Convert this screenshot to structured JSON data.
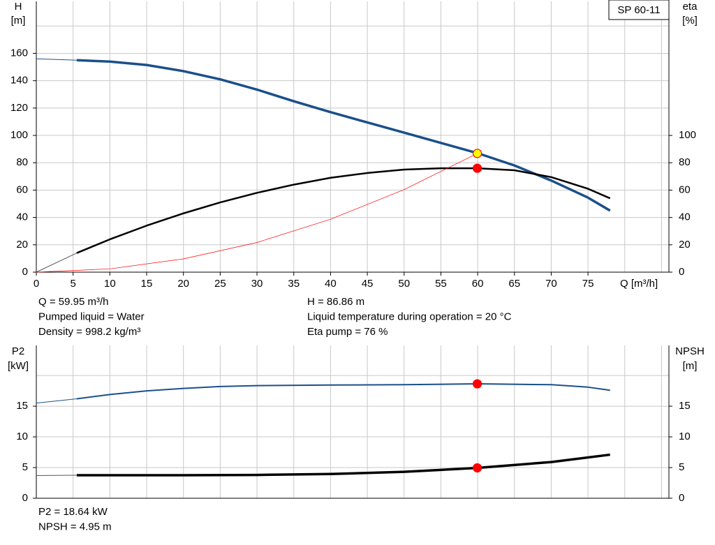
{
  "chart_data": [
    {
      "type": "line",
      "legend_box": "SP 60-11",
      "ylabel": [
        "H",
        "[m]"
      ],
      "y2label": [
        "eta",
        "[%]"
      ],
      "xlabel": "Q [m³/h]",
      "xlim": [
        0,
        86
      ],
      "ylim": [
        0,
        198
      ],
      "y2lim": [
        0,
        198
      ],
      "xticks": [
        0,
        5,
        10,
        15,
        20,
        25,
        30,
        35,
        40,
        45,
        50,
        55,
        60,
        65,
        70,
        75
      ],
      "yticks": [
        0,
        20,
        40,
        60,
        80,
        100,
        120,
        140,
        160
      ],
      "y2ticks": [
        0,
        20,
        40,
        60,
        80,
        100
      ],
      "xgrid": [
        0,
        5,
        10,
        15,
        20,
        25,
        30,
        35,
        40,
        45,
        50,
        55,
        60,
        65,
        70,
        75,
        80,
        85
      ],
      "ygrid": [
        0,
        20,
        40,
        60,
        80,
        100,
        120,
        140,
        160,
        180
      ],
      "series": [
        {
          "color": "#1b4f8a",
          "width": 1,
          "x": [
            0,
            5.5
          ],
          "values": [
            156,
            155
          ]
        },
        {
          "color": "#1b4f8a",
          "width": 3.5,
          "x": [
            5.5,
            10,
            15,
            20,
            25,
            30,
            35,
            40,
            45,
            50,
            55,
            60,
            65,
            70,
            75,
            78
          ],
          "values": [
            155,
            154,
            151.5,
            147,
            141,
            133.5,
            125,
            117,
            109.5,
            102,
            94.5,
            87,
            78,
            67,
            54.5,
            45
          ]
        },
        {
          "color": "#555555",
          "width": 1,
          "axis": "y2",
          "x": [
            0,
            5.5
          ],
          "values": [
            0,
            14
          ]
        },
        {
          "color": "#000000",
          "width": 2.5,
          "axis": "y2",
          "x": [
            5.5,
            10,
            15,
            20,
            25,
            30,
            35,
            40,
            45,
            50,
            55,
            60,
            65,
            70,
            75,
            78
          ],
          "values": [
            14,
            24,
            34,
            43,
            51,
            58,
            64,
            69,
            72.5,
            75,
            76,
            76,
            74.5,
            69.5,
            61,
            54
          ]
        },
        {
          "color": "#ff0000",
          "width": 0.7,
          "x": [
            0,
            10,
            20,
            30,
            40,
            50,
            60
          ],
          "values": [
            0,
            2.4,
            9.7,
            21.7,
            38.7,
            60.4,
            86.9
          ]
        },
        {
          "color": "#ff0000",
          "fill": "#ffff00",
          "marker": true,
          "x": [
            59.95
          ],
          "values": [
            86.86
          ]
        },
        {
          "color": "#ff0000",
          "fill": "#ff0000",
          "marker": true,
          "axis": "y2",
          "x": [
            59.95
          ],
          "values": [
            76
          ]
        }
      ],
      "annotations": [
        [
          "Q = 59.95 m³/h",
          "Pumped liquid = Water",
          "Density = 998.2 kg/m³"
        ],
        [
          "H = 86.86 m",
          "Liquid temperature during operation = 20 °C",
          "Eta pump = 76 %"
        ]
      ]
    },
    {
      "type": "line",
      "ylabel": [
        "P2",
        "[kW]"
      ],
      "y2label": [
        "NPSH",
        "[m]"
      ],
      "xlim": [
        0,
        86
      ],
      "ylim": [
        0,
        24.9
      ],
      "y2lim": [
        0,
        24.9
      ],
      "yticks": [
        0,
        5,
        10,
        15
      ],
      "y2ticks": [
        0,
        5,
        10,
        15
      ],
      "xgrid": [
        0,
        5,
        10,
        15,
        20,
        25,
        30,
        35,
        40,
        45,
        50,
        55,
        60,
        65,
        70,
        75,
        80,
        85
      ],
      "ygrid": [
        0,
        5,
        10,
        15,
        20
      ],
      "series": [
        {
          "color": "#1b4f8a",
          "width": 1,
          "x": [
            0,
            5.5
          ],
          "values": [
            15.5,
            16.2
          ]
        },
        {
          "color": "#1b4f8a",
          "width": 2,
          "x": [
            5.5,
            10,
            15,
            20,
            25,
            30,
            40,
            50,
            60,
            70,
            75,
            78
          ],
          "values": [
            16.2,
            16.9,
            17.5,
            17.9,
            18.2,
            18.35,
            18.45,
            18.5,
            18.64,
            18.5,
            18.1,
            17.6
          ]
        },
        {
          "color": "#555555",
          "width": 1,
          "axis": "y2",
          "x": [
            0,
            5.5
          ],
          "values": [
            3.7,
            3.75
          ]
        },
        {
          "color": "#000000",
          "width": 3.5,
          "axis": "y2",
          "x": [
            5.5,
            20,
            30,
            40,
            50,
            60,
            70,
            78
          ],
          "values": [
            3.75,
            3.75,
            3.8,
            3.95,
            4.3,
            4.95,
            5.9,
            7.1
          ]
        },
        {
          "color": "#ff0000",
          "fill": "#ff0000",
          "marker": true,
          "x": [
            59.95
          ],
          "values": [
            18.64
          ]
        },
        {
          "color": "#ff0000",
          "fill": "#ff0000",
          "marker": true,
          "axis": "y2",
          "x": [
            59.95
          ],
          "values": [
            4.95
          ]
        }
      ],
      "annotations": [
        [
          "P2 = 18.64 kW",
          "NPSH = 4.95 m"
        ]
      ]
    }
  ]
}
